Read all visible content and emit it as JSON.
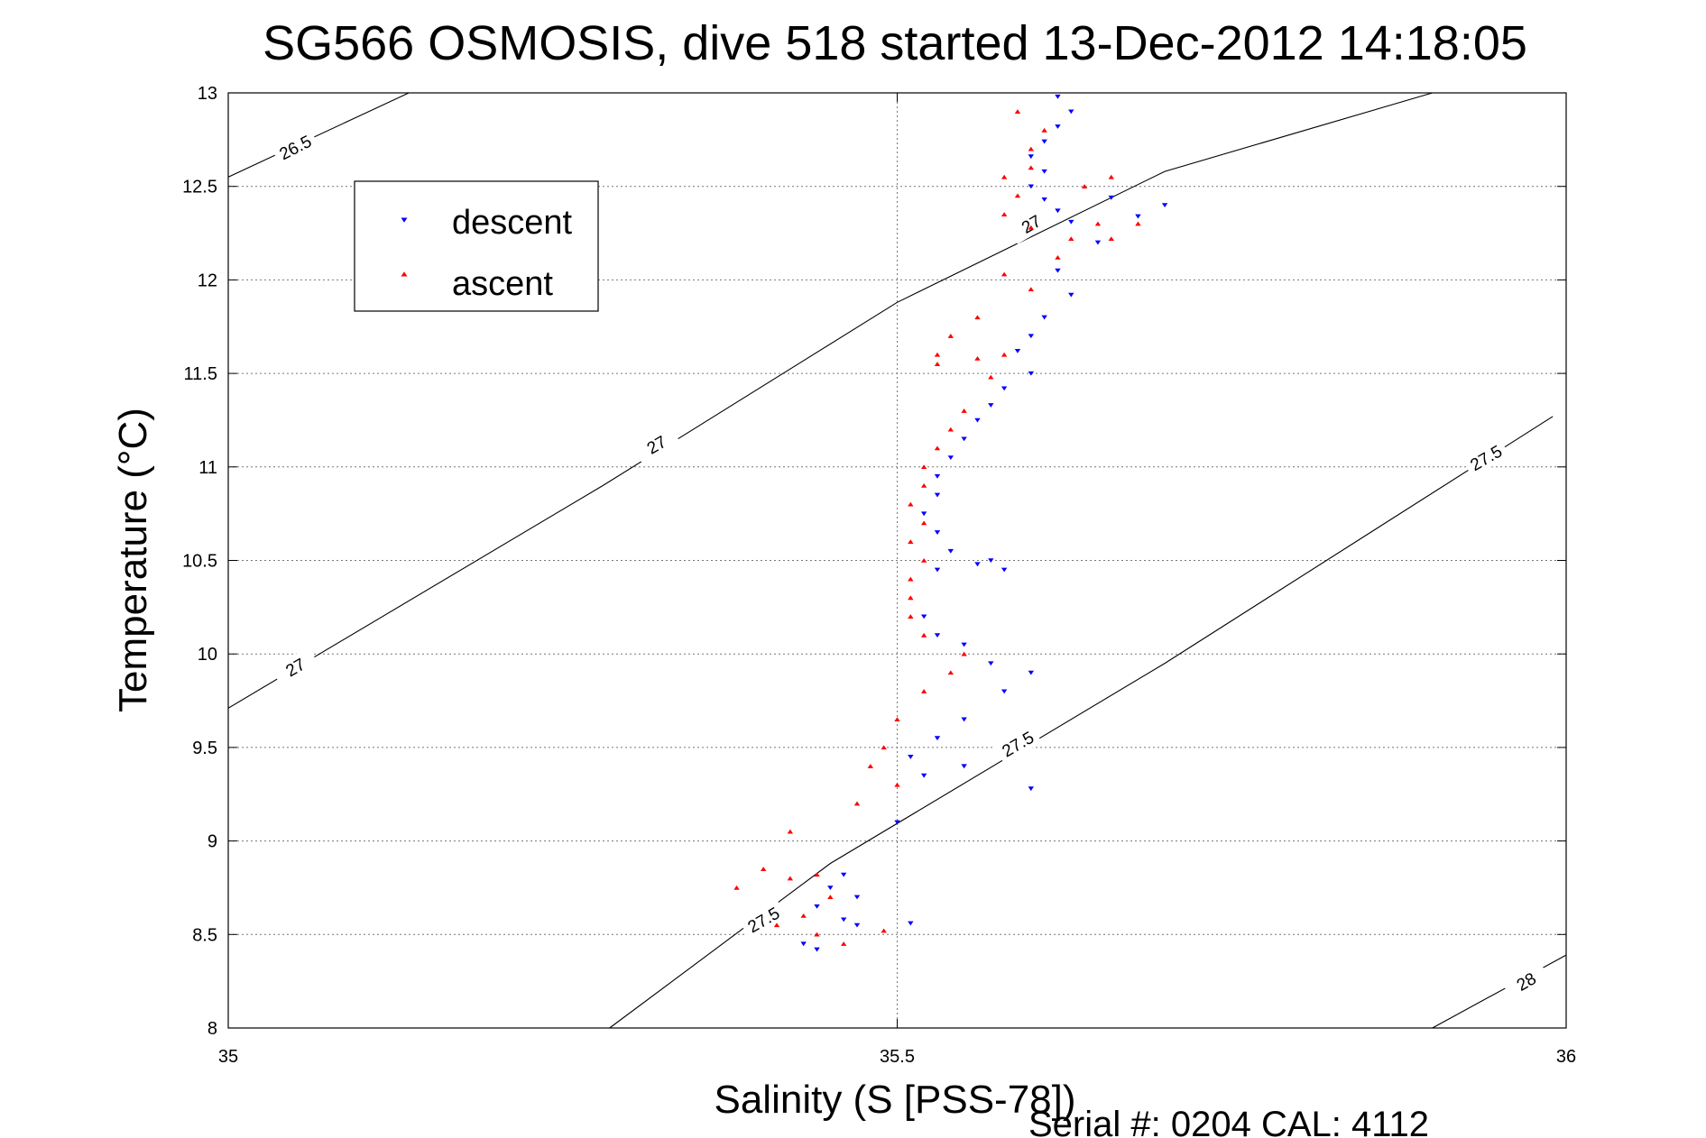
{
  "chart_data": {
    "type": "scatter",
    "title": "SG566 OSMOSIS, dive 518 started 13-Dec-2012 14:18:05",
    "xlabel": "Salinity (S [PSS-78])",
    "ylabel": "Temperature (°C)",
    "xlim": [
      35,
      36
    ],
    "ylim": [
      8,
      13
    ],
    "xticks": [
      35,
      35.5,
      36
    ],
    "xtick_labels": [
      "35",
      "35.5",
      "36"
    ],
    "yticks": [
      8,
      8.5,
      9,
      9.5,
      10,
      10.5,
      11,
      11.5,
      12,
      12.5,
      13
    ],
    "ytick_labels": [
      "8",
      "8.5",
      "9",
      "9.5",
      "10",
      "10.5",
      "11",
      "11.5",
      "12",
      "12.5",
      "13"
    ],
    "grid": true,
    "legend_position": "top-left",
    "contours": [
      {
        "points": [
          [
            35.0,
            12.55
          ],
          [
            35.135,
            13.0
          ]
        ],
        "labels": [
          {
            "text": "26.5",
            "x": 35.05,
            "y": 12.71,
            "angle": -27
          }
        ]
      },
      {
        "points": [
          [
            35.0,
            9.71
          ],
          [
            35.28,
            10.9
          ],
          [
            35.5,
            11.88
          ],
          [
            35.7,
            12.58
          ],
          [
            35.9,
            13.0
          ]
        ],
        "labels": [
          {
            "text": "27",
            "x": 35.05,
            "y": 9.93,
            "angle": -30
          },
          {
            "text": "27",
            "x": 35.32,
            "y": 11.12,
            "angle": -30
          },
          {
            "text": "27",
            "x": 35.6,
            "y": 12.3,
            "angle": -30
          }
        ]
      },
      {
        "points": [
          [
            35.285,
            8.0
          ],
          [
            35.45,
            8.88
          ],
          [
            35.7,
            9.95
          ],
          [
            35.99,
            11.27
          ]
        ],
        "labels": [
          {
            "text": "27.5",
            "x": 35.4,
            "y": 8.58,
            "angle": -30
          },
          {
            "text": "27.5",
            "x": 35.59,
            "y": 9.52,
            "angle": -30
          },
          {
            "text": "27.5",
            "x": 35.94,
            "y": 11.05,
            "angle": -30
          }
        ]
      },
      {
        "points": [
          [
            35.9,
            8.0
          ],
          [
            36.0,
            8.39
          ]
        ],
        "labels": [
          {
            "text": "28",
            "x": 35.97,
            "y": 8.25,
            "angle": -30
          }
        ]
      }
    ],
    "series": [
      {
        "name": "descent",
        "color": "#0000ff",
        "marker": "triangle-down",
        "points": [
          [
            35.62,
            12.98
          ],
          [
            35.63,
            12.9
          ],
          [
            35.62,
            12.82
          ],
          [
            35.61,
            12.74
          ],
          [
            35.6,
            12.66
          ],
          [
            35.61,
            12.58
          ],
          [
            35.6,
            12.5
          ],
          [
            35.61,
            12.43
          ],
          [
            35.62,
            12.37
          ],
          [
            35.63,
            12.31
          ],
          [
            35.66,
            12.44
          ],
          [
            35.68,
            12.34
          ],
          [
            35.7,
            12.4
          ],
          [
            35.65,
            12.2
          ],
          [
            35.62,
            12.05
          ],
          [
            35.63,
            11.92
          ],
          [
            35.61,
            11.8
          ],
          [
            35.6,
            11.7
          ],
          [
            35.59,
            11.62
          ],
          [
            35.6,
            11.5
          ],
          [
            35.58,
            11.42
          ],
          [
            35.57,
            11.33
          ],
          [
            35.56,
            11.25
          ],
          [
            35.55,
            11.15
          ],
          [
            35.54,
            11.05
          ],
          [
            35.53,
            10.95
          ],
          [
            35.53,
            10.85
          ],
          [
            35.52,
            10.75
          ],
          [
            35.53,
            10.65
          ],
          [
            35.54,
            10.55
          ],
          [
            35.53,
            10.45
          ],
          [
            35.56,
            10.48
          ],
          [
            35.57,
            10.5
          ],
          [
            35.58,
            10.45
          ],
          [
            35.52,
            10.2
          ],
          [
            35.53,
            10.1
          ],
          [
            35.55,
            10.05
          ],
          [
            35.57,
            9.95
          ],
          [
            35.6,
            9.9
          ],
          [
            35.58,
            9.8
          ],
          [
            35.55,
            9.65
          ],
          [
            35.53,
            9.55
          ],
          [
            35.51,
            9.45
          ],
          [
            35.52,
            9.35
          ],
          [
            35.55,
            9.4
          ],
          [
            35.6,
            9.28
          ],
          [
            35.5,
            9.1
          ],
          [
            35.46,
            8.82
          ],
          [
            35.45,
            8.75
          ],
          [
            35.47,
            8.7
          ],
          [
            35.44,
            8.65
          ],
          [
            35.46,
            8.58
          ],
          [
            35.47,
            8.55
          ],
          [
            35.43,
            8.45
          ],
          [
            35.44,
            8.42
          ],
          [
            35.51,
            8.56
          ]
        ]
      },
      {
        "name": "ascent",
        "color": "#ff0000",
        "marker": "triangle-up",
        "points": [
          [
            35.59,
            12.9
          ],
          [
            35.61,
            12.8
          ],
          [
            35.6,
            12.7
          ],
          [
            35.6,
            12.6
          ],
          [
            35.58,
            12.55
          ],
          [
            35.59,
            12.45
          ],
          [
            35.58,
            12.35
          ],
          [
            35.6,
            12.28
          ],
          [
            35.64,
            12.5
          ],
          [
            35.66,
            12.55
          ],
          [
            35.65,
            12.3
          ],
          [
            35.63,
            12.22
          ],
          [
            35.66,
            12.22
          ],
          [
            35.68,
            12.3
          ],
          [
            35.62,
            12.12
          ],
          [
            35.58,
            12.03
          ],
          [
            35.6,
            11.95
          ],
          [
            35.56,
            11.8
          ],
          [
            35.54,
            11.7
          ],
          [
            35.53,
            11.6
          ],
          [
            35.53,
            11.55
          ],
          [
            35.56,
            11.58
          ],
          [
            35.58,
            11.6
          ],
          [
            35.57,
            11.48
          ],
          [
            35.55,
            11.3
          ],
          [
            35.54,
            11.2
          ],
          [
            35.53,
            11.1
          ],
          [
            35.52,
            11.0
          ],
          [
            35.52,
            10.9
          ],
          [
            35.51,
            10.8
          ],
          [
            35.52,
            10.7
          ],
          [
            35.51,
            10.6
          ],
          [
            35.52,
            10.5
          ],
          [
            35.51,
            10.4
          ],
          [
            35.51,
            10.3
          ],
          [
            35.51,
            10.2
          ],
          [
            35.52,
            10.1
          ],
          [
            35.55,
            10.0
          ],
          [
            35.54,
            9.9
          ],
          [
            35.52,
            9.8
          ],
          [
            35.5,
            9.65
          ],
          [
            35.49,
            9.5
          ],
          [
            35.48,
            9.4
          ],
          [
            35.5,
            9.3
          ],
          [
            35.47,
            9.2
          ],
          [
            35.42,
            9.05
          ],
          [
            35.4,
            8.85
          ],
          [
            35.42,
            8.8
          ],
          [
            35.44,
            8.82
          ],
          [
            35.45,
            8.7
          ],
          [
            35.43,
            8.6
          ],
          [
            35.44,
            8.5
          ],
          [
            35.46,
            8.45
          ],
          [
            35.49,
            8.52
          ],
          [
            35.38,
            8.75
          ],
          [
            35.41,
            8.55
          ]
        ]
      }
    ]
  },
  "footer": {
    "text": "Serial #: 0204  CAL: 4112"
  }
}
